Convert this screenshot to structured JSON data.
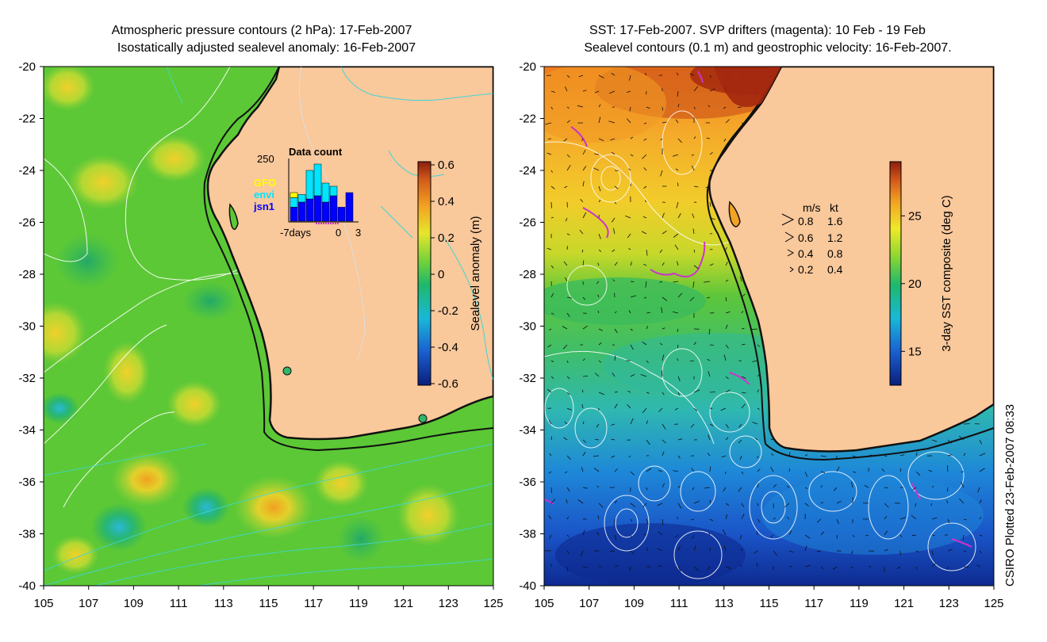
{
  "left_panel": {
    "title_line1": "Atmospheric pressure contours (2 hPa): 17-Feb-2007",
    "title_line2": "Isostatically adjusted sealevel anomaly: 16-Feb-2007",
    "y_ticks": [
      "-20",
      "-22",
      "-24",
      "-26",
      "-28",
      "-30",
      "-32",
      "-34",
      "-36",
      "-38",
      "-40"
    ],
    "x_ticks": [
      "105",
      "107",
      "109",
      "111",
      "113",
      "115",
      "117",
      "119",
      "121",
      "123",
      "125"
    ],
    "colorbar": {
      "label": "Sealevel anomaly (m)",
      "ticks": [
        "0.6",
        "0.4",
        "0.2",
        "0",
        "-0.2",
        "-0.4",
        "-0.6"
      ]
    },
    "inset": {
      "title": "Data count",
      "max_label": "250",
      "legend": [
        {
          "label": "GFO",
          "color": "#ffff00"
        },
        {
          "label": "envi",
          "color": "#00e5ff"
        },
        {
          "label": "jsn1",
          "color": "#0000ff"
        }
      ],
      "x_labels": [
        "-7days",
        "0",
        "3"
      ],
      "bars": [
        {
          "jsn1": 0.22,
          "envi": 0.15,
          "gfo": 0.08
        },
        {
          "jsn1": 0.3,
          "envi": 0.12,
          "gfo": 0.0
        },
        {
          "jsn1": 0.35,
          "envi": 0.45,
          "gfo": 0.0
        },
        {
          "jsn1": 0.4,
          "envi": 0.5,
          "gfo": 0.0
        },
        {
          "jsn1": 0.3,
          "envi": 0.3,
          "gfo": 0.0
        },
        {
          "jsn1": 0.4,
          "envi": 0.15,
          "gfo": 0.0
        },
        {
          "jsn1": 0.22,
          "envi": 0.0,
          "gfo": 0.0
        },
        {
          "jsn1": 0.45,
          "envi": 0.0,
          "gfo": 0.0
        }
      ]
    }
  },
  "right_panel": {
    "title_line1": "SST: 17-Feb-2007. SVP drifters (magenta): 10 Feb - 19 Feb",
    "title_line2": "Sealevel contours (0.1 m) and geostrophic velocity: 16-Feb-2007.",
    "y_ticks": [
      "-20",
      "-22",
      "-24",
      "-26",
      "-28",
      "-30",
      "-32",
      "-34",
      "-36",
      "-38",
      "-40"
    ],
    "x_ticks": [
      "105",
      "107",
      "109",
      "111",
      "113",
      "115",
      "117",
      "119",
      "121",
      "123",
      "125"
    ],
    "colorbar": {
      "label": "3-day SST composite (deg C)",
      "ticks": [
        "25",
        "20",
        "15"
      ]
    },
    "velocity_legend": {
      "header_ms": "m/s",
      "header_kt": "kt",
      "rows": [
        {
          "ms": "0.8",
          "kt": "1.6"
        },
        {
          "ms": "0.6",
          "kt": "1.2"
        },
        {
          "ms": "0.4",
          "kt": "0.8"
        },
        {
          "ms": "0.2",
          "kt": "0.4"
        }
      ]
    }
  },
  "credit": "CSIRO Plotted 23-Feb-2007 08:33",
  "colors": {
    "land": "#f9c89b",
    "coast": "#111111",
    "contour_cyan": "#3fd6d6",
    "drifter": "#cc33cc"
  }
}
